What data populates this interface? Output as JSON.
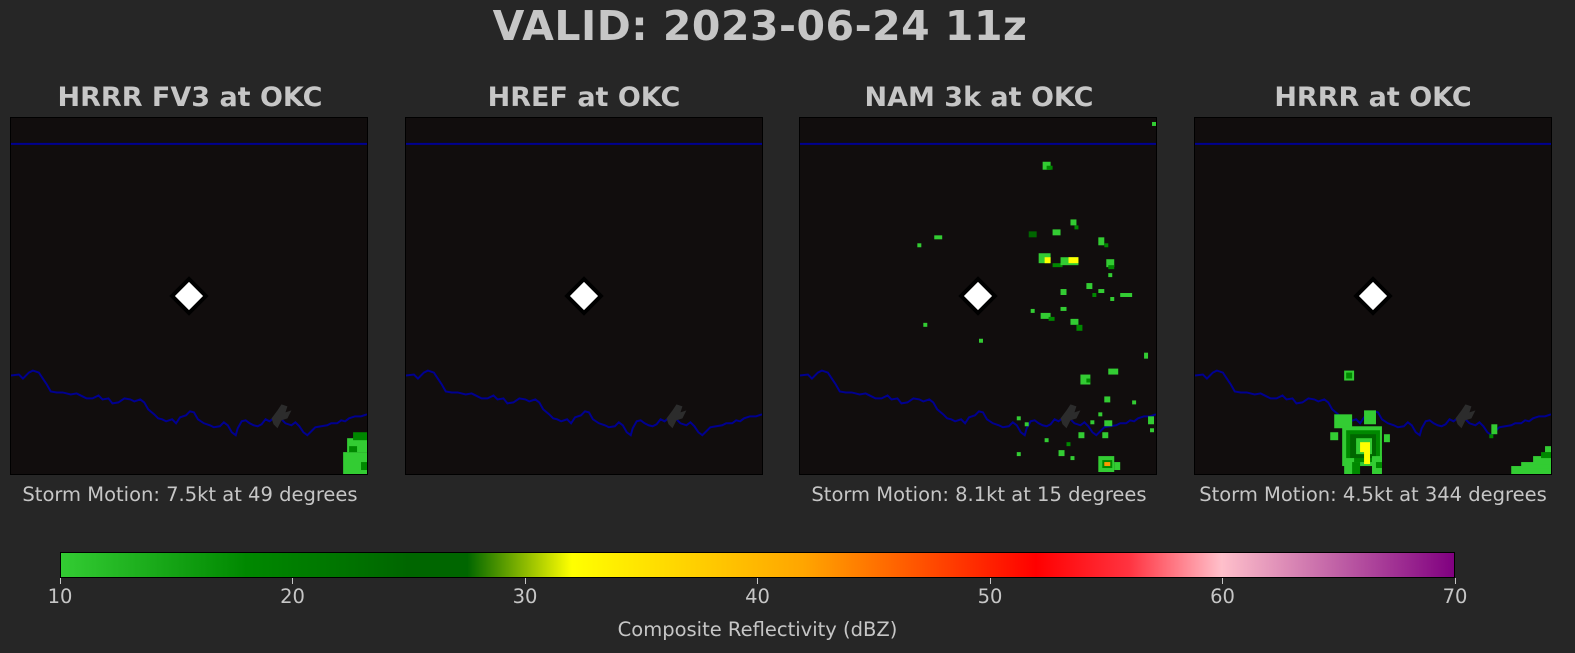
{
  "title": "VALID: 2023-06-24 11z",
  "colors": {
    "background": "#262626",
    "map_background": "#110d0d",
    "boundary_line": "#000090",
    "text": "#c6c6c6",
    "station_marker": "#ffffff",
    "colormap": [
      "#33cc33",
      "#007a00",
      "#006600",
      "#ffff00",
      "#ffa500",
      "#ff0000",
      "#ffc0cb",
      "#800080"
    ]
  },
  "panels": [
    {
      "title": "HRRR FV3 at OKC",
      "storm_motion": "Storm Motion: 7.5kt at 49 degrees"
    },
    {
      "title": "HREF at OKC",
      "storm_motion": ""
    },
    {
      "title": "NAM 3k at OKC",
      "storm_motion": "Storm Motion: 8.1kt at 15 degrees"
    },
    {
      "title": "HRRR at OKC",
      "storm_motion": "Storm Motion: 4.5kt at 344 degrees"
    }
  ],
  "chart_data": {
    "type": "heatmap",
    "title": "VALID: 2023-06-24 11z",
    "panel_titles": [
      "HRRR FV3 at OKC",
      "HREF at OKC",
      "NAM 3k at OKC",
      "HRRR at OKC"
    ],
    "station": "OKC",
    "colorbar": {
      "label": "Composite Reflectivity (dBZ)",
      "range": [
        10,
        70
      ],
      "ticks": [
        10,
        20,
        30,
        40,
        50,
        60,
        70
      ],
      "stops": [
        {
          "value": 10,
          "color": "#33cc33"
        },
        {
          "value": 18,
          "color": "#008800"
        },
        {
          "value": 25,
          "color": "#006600"
        },
        {
          "value": 27.5,
          "color": "#006600"
        },
        {
          "value": 32,
          "color": "#ffff00"
        },
        {
          "value": 42,
          "color": "#ffa500"
        },
        {
          "value": 52,
          "color": "#ff0000"
        },
        {
          "value": 56,
          "color": "#ff3340"
        },
        {
          "value": 60,
          "color": "#ffc0cb"
        },
        {
          "value": 70,
          "color": "#800080"
        }
      ]
    },
    "storm_motion": [
      {
        "panel": "HRRR FV3 at OKC",
        "speed_kt": 7.5,
        "direction_deg": 49
      },
      {
        "panel": "HREF at OKC",
        "speed_kt": null,
        "direction_deg": null
      },
      {
        "panel": "NAM 3k at OKC",
        "speed_kt": 8.1,
        "direction_deg": 15
      },
      {
        "panel": "HRRR at OKC",
        "speed_kt": 4.5,
        "direction_deg": 344
      }
    ]
  }
}
